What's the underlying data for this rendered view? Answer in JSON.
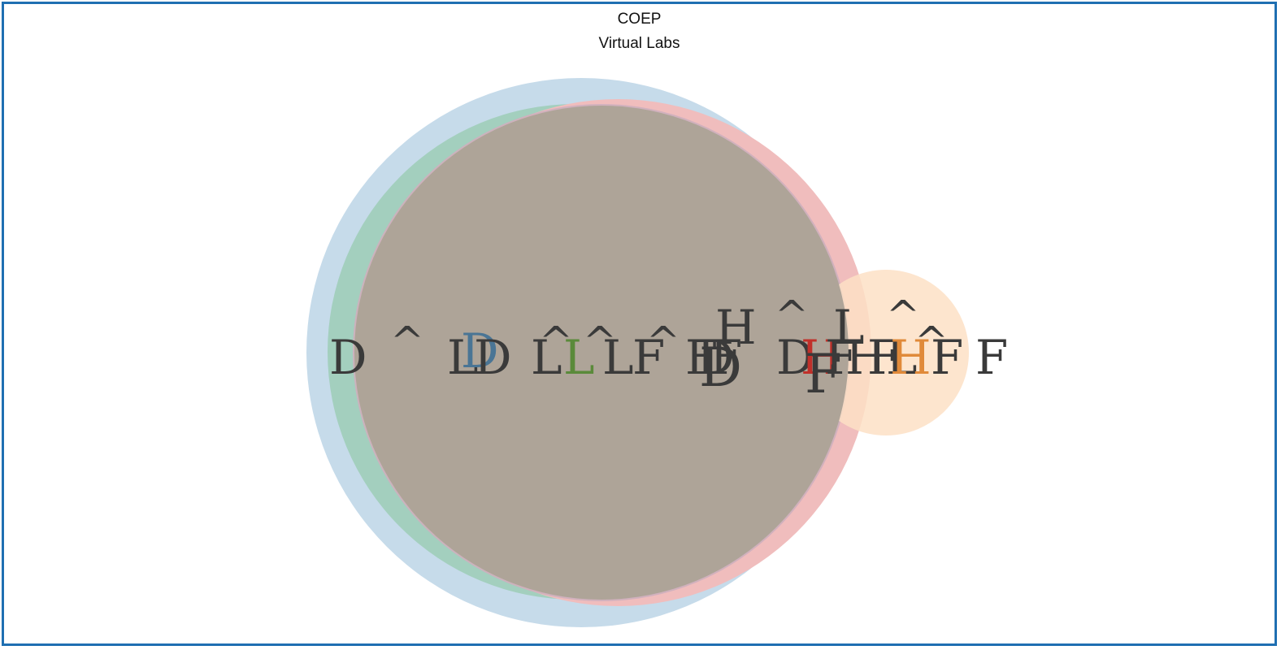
{
  "header": {
    "title": "COEP",
    "subtitle": "Virtual Labs"
  },
  "colors": {
    "frame": "#1f6fb2",
    "circle_blue": "#c6dbea",
    "circle_green": "#a3cfbe",
    "circle_pink": "#cfb0bd",
    "circle_red": "#f0bdbd",
    "circle_peach": "#fde0c6",
    "overlap": "#aea498",
    "glyph_dark": "#3a3a3a",
    "glyph_blue": "#4a7595",
    "glyph_green": "#5a8a3a",
    "glyph_red": "#c0302a",
    "glyph_orange": "#e08a3a"
  },
  "glyphs": [
    {
      "text": "D",
      "color": "glyph_dark"
    },
    {
      "text": "^",
      "color": "glyph_dark"
    },
    {
      "text": "L",
      "color": "glyph_dark"
    },
    {
      "text": "D",
      "color": "glyph_blue"
    },
    {
      "text": "D",
      "color": "glyph_dark"
    },
    {
      "text": "L",
      "color": "glyph_dark"
    },
    {
      "text": "^",
      "color": "glyph_dark"
    },
    {
      "text": "L",
      "color": "glyph_green"
    },
    {
      "text": "^",
      "color": "glyph_dark"
    },
    {
      "text": "L",
      "color": "glyph_dark"
    },
    {
      "text": "F",
      "color": "glyph_dark"
    },
    {
      "text": "^",
      "color": "glyph_dark"
    },
    {
      "text": "F",
      "color": "glyph_dark"
    },
    {
      "text": "D",
      "color": "glyph_dark"
    },
    {
      "text": "F",
      "color": "glyph_dark"
    },
    {
      "text": "D",
      "color": "glyph_dark"
    },
    {
      "text": "H",
      "color": "glyph_dark"
    },
    {
      "text": "^",
      "color": "glyph_dark"
    },
    {
      "text": "D",
      "color": "glyph_dark"
    },
    {
      "text": "H",
      "color": "glyph_red"
    },
    {
      "text": "F",
      "color": "glyph_dark"
    },
    {
      "text": "F",
      "color": "glyph_dark"
    },
    {
      "text": "L",
      "color": "glyph_dark"
    },
    {
      "text": "H",
      "color": "glyph_dark"
    },
    {
      "text": "F",
      "color": "glyph_dark"
    },
    {
      "text": "^",
      "color": "glyph_dark"
    },
    {
      "text": "L",
      "color": "glyph_dark"
    },
    {
      "text": "H",
      "color": "glyph_orange"
    },
    {
      "text": "^",
      "color": "glyph_dark"
    },
    {
      "text": "F",
      "color": "glyph_dark"
    },
    {
      "text": "F",
      "color": "glyph_dark"
    }
  ]
}
